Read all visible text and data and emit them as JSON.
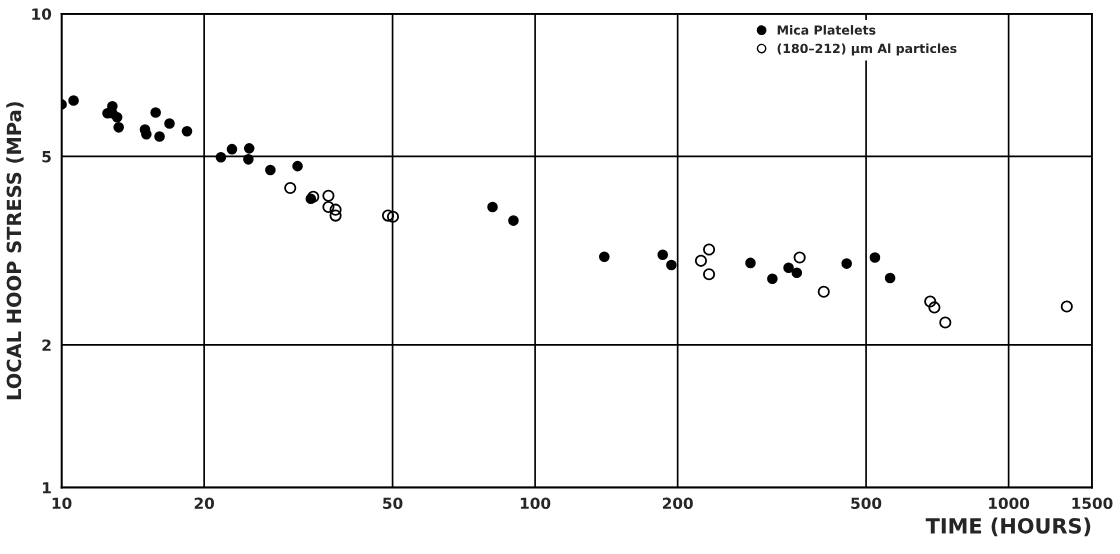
{
  "chart_data": {
    "type": "scatter",
    "xlabel": "TIME (HOURS)",
    "ylabel": "LOCAL HOOP STRESS (MPa)",
    "log": "xy",
    "xlim": [
      10,
      1500
    ],
    "ylim": [
      1,
      10
    ],
    "xticks": [
      10,
      20,
      50,
      100,
      200,
      500,
      1000,
      1500
    ],
    "yticks": [
      1,
      2,
      5,
      10
    ],
    "grid": true,
    "legend": "top right",
    "marker": "circle",
    "series": [
      {
        "name": "Mica Platelets",
        "color": "#000000",
        "x": [
          10,
          10.6,
          12.8,
          12.5,
          12.8,
          13.1,
          13.2,
          15.8,
          15.0,
          15.1,
          16.1,
          16.9,
          18.4,
          21.7,
          22.9,
          24.9,
          24.8,
          27.6,
          31.5,
          33.6,
          81.3,
          90,
          140,
          186,
          194,
          285,
          317,
          343,
          357,
          455,
          522,
          562
        ],
        "values": [
          6.44,
          6.56,
          6.38,
          6.17,
          6.17,
          6.05,
          5.76,
          6.19,
          5.7,
          5.57,
          5.51,
          5.87,
          5.65,
          4.98,
          5.18,
          5.2,
          4.93,
          4.68,
          4.77,
          4.07,
          3.91,
          3.66,
          3.07,
          3.1,
          2.95,
          2.98,
          2.76,
          2.91,
          2.84,
          2.97,
          3.06,
          2.77
        ]
      },
      {
        "name": "(180–212) µm Al particles",
        "color": "#000000",
        "x": [
          30.4,
          34.0,
          36.6,
          36.6,
          37.9,
          37.9,
          48.9,
          50.1,
          233,
          224,
          233,
          362,
          407,
          683,
          697,
          735,
          1327
        ],
        "values": [
          4.29,
          4.11,
          4.13,
          3.91,
          3.86,
          3.75,
          3.75,
          3.73,
          3.18,
          3.01,
          2.82,
          3.06,
          2.59,
          2.47,
          2.4,
          2.23,
          2.41
        ]
      }
    ]
  }
}
